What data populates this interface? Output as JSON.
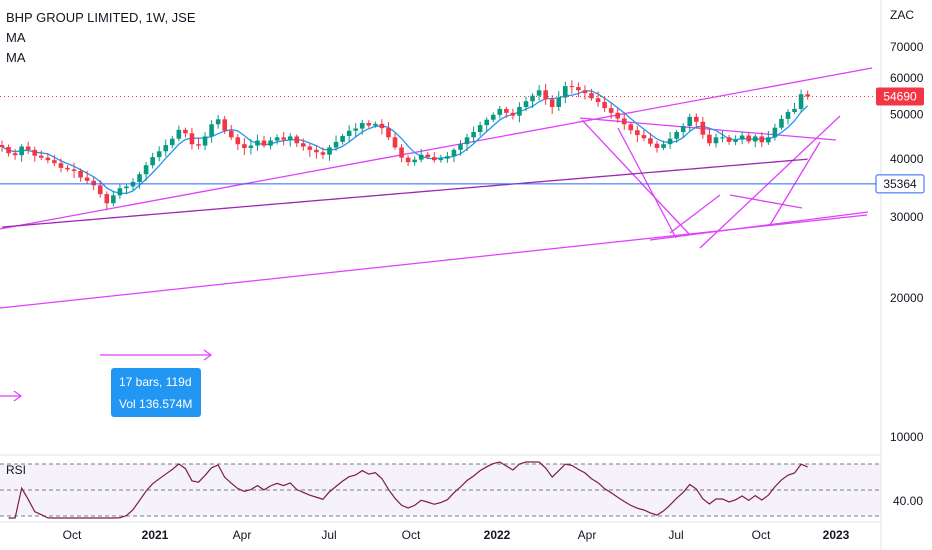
{
  "chart_data": {
    "type": "candlestick",
    "title": "BHP GROUP LIMITED, 1W, JSE",
    "indicators": [
      "MA",
      "MA"
    ],
    "currency": "ZAC",
    "y_ticks": [
      "70000",
      "60000",
      "50000",
      "40000",
      "30000",
      "20000",
      "10000"
    ],
    "x_ticks": [
      "Oct",
      "2021",
      "Apr",
      "Jul",
      "Oct",
      "2022",
      "Apr",
      "Jul",
      "Oct",
      "2023"
    ],
    "ylim": [
      6000,
      75000
    ],
    "last_price": {
      "value": 54690,
      "label": "54690",
      "color": "#f23645"
    },
    "horizontal_line": {
      "value": 35364,
      "label": "35364",
      "color": "#2962ff"
    },
    "measure_tooltip": {
      "line1": "17 bars, 119d",
      "line2": "Vol 136.574M"
    },
    "up_color": "#089981",
    "down_color": "#f23645",
    "ma_colors": [
      "#2196f3",
      "#9c27b0"
    ],
    "trendline_color": "#e040fb",
    "rsi": {
      "label": "RSI",
      "tick": "40.00",
      "upper": 70,
      "middle": 50,
      "lower": 30
    },
    "closes": [
      42500,
      41200,
      40800,
      42600,
      41900,
      40700,
      40300,
      39800,
      39200,
      38300,
      38000,
      37700,
      36500,
      35900,
      35100,
      33600,
      32100,
      33400,
      34600,
      34900,
      35700,
      37100,
      38800,
      40400,
      41600,
      42900,
      44300,
      46300,
      45500,
      43100,
      42800,
      44800,
      47600,
      48800,
      46100,
      44600,
      43100,
      42300,
      42800,
      43900,
      42800,
      43900,
      44600,
      44100,
      44800,
      43300,
      42600,
      41900,
      41400,
      40900,
      42400,
      43600,
      44900,
      46100,
      46600,
      47900,
      47300,
      47700,
      46700,
      44600,
      42400,
      40300,
      39400,
      39900,
      40900,
      40400,
      39800,
      40100,
      40600,
      41900,
      43100,
      44600,
      45800,
      47400,
      48700,
      49900,
      51400,
      50400,
      49700,
      51900,
      53400,
      54900,
      56400,
      53900,
      51900,
      54400,
      57600,
      57300,
      56400,
      55600,
      54200,
      53200,
      51600,
      50400,
      49000,
      47600,
      46200,
      45100,
      44400,
      43200,
      42300,
      43100,
      44300,
      45800,
      47200,
      49400,
      48200,
      45200,
      43300,
      44600,
      44600,
      43600,
      44100,
      45000,
      43700,
      44800,
      43500,
      44600,
      46800,
      48900,
      50600,
      51400,
      55300,
      54690
    ]
  }
}
